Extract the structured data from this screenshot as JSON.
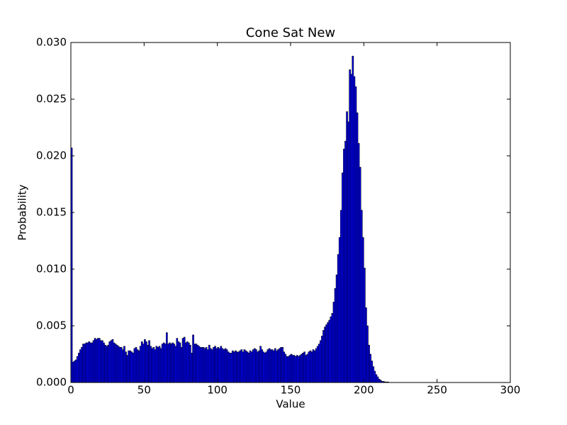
{
  "chart_data": {
    "type": "histogram",
    "title": "Cone Sat New",
    "x_label": "Value",
    "y_label": "Probability",
    "color": "#0000ff",
    "edgecolor": "#000000",
    "bins": [
      0,
      1,
      2,
      3,
      4,
      5,
      6,
      7,
      8,
      9,
      10,
      11,
      12,
      13,
      14,
      15,
      16,
      17,
      18,
      19,
      20,
      21,
      22,
      23,
      24,
      25,
      26,
      27,
      28,
      29,
      30,
      31,
      32,
      33,
      34,
      35,
      36,
      37,
      38,
      39,
      40,
      41,
      42,
      43,
      44,
      45,
      46,
      47,
      48,
      49,
      50,
      51,
      52,
      53,
      54,
      55,
      56,
      57,
      58,
      59,
      60,
      61,
      62,
      63,
      64,
      65,
      66,
      67,
      68,
      69,
      70,
      71,
      72,
      73,
      74,
      75,
      76,
      77,
      78,
      79,
      80,
      81,
      82,
      83,
      84,
      85,
      86,
      87,
      88,
      89,
      90,
      91,
      92,
      93,
      94,
      95,
      96,
      97,
      98,
      99,
      100,
      101,
      102,
      103,
      104,
      105,
      106,
      107,
      108,
      109,
      110,
      111,
      112,
      113,
      114,
      115,
      116,
      117,
      118,
      119,
      120,
      121,
      122,
      123,
      124,
      125,
      126,
      127,
      128,
      129,
      130,
      131,
      132,
      133,
      134,
      135,
      136,
      137,
      138,
      139,
      140,
      141,
      142,
      143,
      144,
      145,
      146,
      147,
      148,
      149,
      150,
      151,
      152,
      153,
      154,
      155,
      156,
      157,
      158,
      159,
      160,
      161,
      162,
      163,
      164,
      165,
      166,
      167,
      168,
      169,
      170,
      171,
      172,
      173,
      174,
      175,
      176,
      177,
      178,
      179,
      180,
      181,
      182,
      183,
      184,
      185,
      186,
      187,
      188,
      189,
      190,
      191,
      192,
      193,
      194,
      195,
      196,
      197,
      198,
      199,
      200,
      201,
      202,
      203,
      204,
      205,
      206,
      207,
      208,
      209,
      210,
      211,
      212,
      213,
      214,
      215,
      216,
      217,
      218,
      219,
      220,
      221,
      222,
      223,
      224,
      225,
      226,
      227,
      228,
      229,
      230,
      231,
      232,
      233,
      234,
      235,
      236,
      237,
      238,
      239,
      240,
      241,
      242,
      243,
      244,
      245,
      246,
      247,
      248,
      249,
      250,
      251,
      252,
      253,
      254,
      255,
      256
    ],
    "values": [
      0.0207,
      0.0018,
      0.0019,
      0.002,
      0.0023,
      0.0026,
      0.0029,
      0.0031,
      0.0034,
      0.0034,
      0.0035,
      0.0035,
      0.0036,
      0.0035,
      0.0035,
      0.0037,
      0.0039,
      0.0038,
      0.0039,
      0.0039,
      0.0037,
      0.0037,
      0.0035,
      0.0033,
      0.0032,
      0.0033,
      0.0036,
      0.0037,
      0.0038,
      0.0035,
      0.0034,
      0.0033,
      0.0032,
      0.0031,
      0.0031,
      0.0029,
      0.0032,
      0.0027,
      0.0024,
      0.0028,
      0.0028,
      0.0027,
      0.0026,
      0.003,
      0.0031,
      0.0029,
      0.0028,
      0.0032,
      0.0036,
      0.0034,
      0.0038,
      0.0036,
      0.0033,
      0.0037,
      0.0032,
      0.003,
      0.0031,
      0.0029,
      0.0032,
      0.0031,
      0.0032,
      0.003,
      0.0034,
      0.0035,
      0.0034,
      0.0044,
      0.0034,
      0.0035,
      0.0034,
      0.0035,
      0.0034,
      0.0032,
      0.0039,
      0.0036,
      0.0035,
      0.0031,
      0.0039,
      0.004,
      0.0035,
      0.0036,
      0.0035,
      0.0033,
      0.0026,
      0.0042,
      0.0034,
      0.0034,
      0.0033,
      0.0032,
      0.0031,
      0.0031,
      0.0031,
      0.003,
      0.0031,
      0.0029,
      0.0033,
      0.003,
      0.0029,
      0.0031,
      0.0032,
      0.003,
      0.0031,
      0.003,
      0.0032,
      0.003,
      0.0029,
      0.003,
      0.0029,
      0.0027,
      0.0026,
      0.0026,
      0.0028,
      0.0027,
      0.0028,
      0.0027,
      0.0027,
      0.0028,
      0.0029,
      0.0027,
      0.0029,
      0.0028,
      0.0027,
      0.0026,
      0.0028,
      0.0027,
      0.0029,
      0.003,
      0.0029,
      0.0027,
      0.0028,
      0.0032,
      0.0029,
      0.0027,
      0.0026,
      0.0027,
      0.0029,
      0.003,
      0.0029,
      0.0029,
      0.0028,
      0.003,
      0.0028,
      0.0029,
      0.003,
      0.0031,
      0.0031,
      0.0027,
      0.0025,
      0.0023,
      0.0023,
      0.0024,
      0.0025,
      0.0024,
      0.0024,
      0.0023,
      0.0024,
      0.0023,
      0.0024,
      0.0025,
      0.0026,
      0.0027,
      0.0024,
      0.0025,
      0.0027,
      0.0028,
      0.0027,
      0.0029,
      0.0028,
      0.003,
      0.0032,
      0.0034,
      0.0037,
      0.0041,
      0.0046,
      0.0049,
      0.0051,
      0.0053,
      0.0055,
      0.0058,
      0.0061,
      0.0071,
      0.0083,
      0.0095,
      0.0113,
      0.0128,
      0.0152,
      0.0185,
      0.0206,
      0.0213,
      0.0239,
      0.023,
      0.0276,
      0.0272,
      0.0288,
      0.027,
      0.0261,
      0.0238,
      0.0211,
      0.019,
      0.0152,
      0.0128,
      0.0101,
      0.0066,
      0.005,
      0.0033,
      0.0025,
      0.0019,
      0.0014,
      0.001,
      0.0007,
      0.0005,
      0.0003,
      0.0002,
      0.0001,
      0.0001,
      5e-05,
      5e-05,
      5e-05,
      0,
      0,
      0,
      0,
      0,
      0,
      0,
      0,
      0,
      0,
      0,
      0,
      0,
      0,
      0,
      0,
      0,
      0,
      0,
      0,
      0,
      0,
      0,
      0,
      0,
      0,
      0,
      0,
      0,
      0,
      0,
      0,
      0,
      0,
      0,
      0,
      0,
      0,
      0
    ],
    "xlim": [
      0,
      300
    ],
    "xticks": [
      0,
      50,
      100,
      150,
      200,
      250,
      300
    ],
    "ylim": [
      0,
      0.03
    ],
    "yticks": [
      {
        "value": 0,
        "label": "0.000"
      },
      {
        "value": 0.005,
        "label": "0.005"
      },
      {
        "value": 0.01,
        "label": "0.010"
      },
      {
        "value": 0.015,
        "label": "0.015"
      },
      {
        "value": 0.02,
        "label": "0.020"
      },
      {
        "value": 0.025,
        "label": "0.025"
      },
      {
        "value": 0.03,
        "label": "0.030"
      }
    ]
  }
}
